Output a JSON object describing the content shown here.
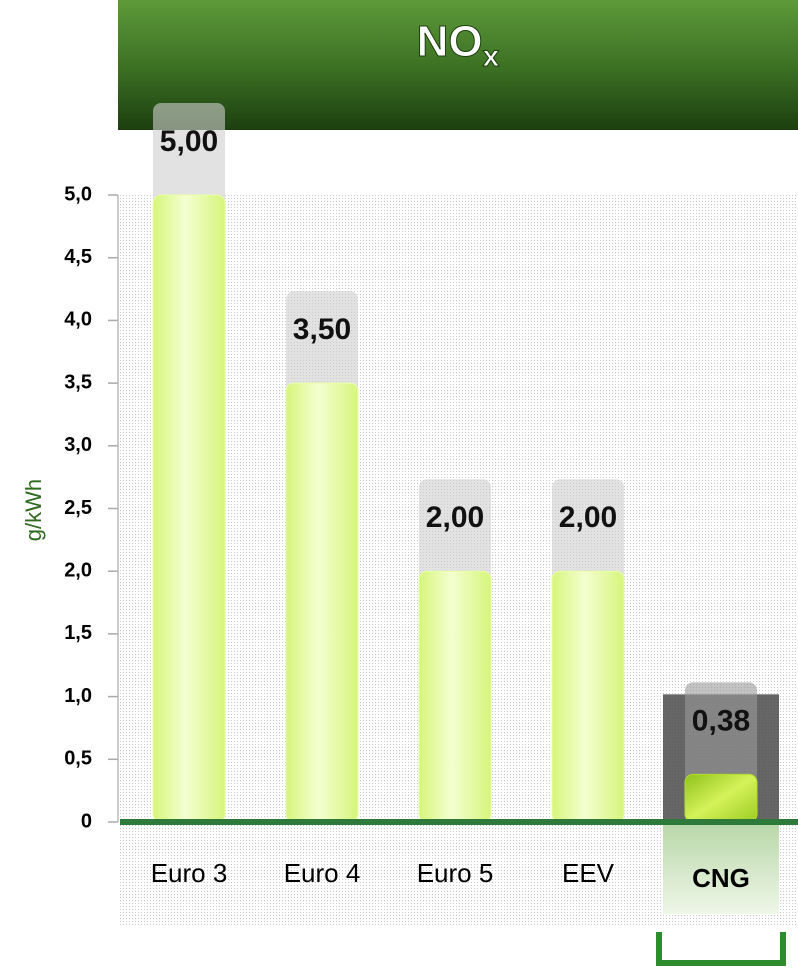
{
  "chart_data": {
    "type": "bar",
    "title": "NO",
    "title_subscript": "x",
    "y_label": "g/kWh",
    "categories": [
      "Euro 3",
      "Euro 4",
      "Euro 5",
      "EEV",
      "CNG"
    ],
    "values": [
      5.0,
      3.5,
      2.0,
      2.0,
      0.38
    ],
    "value_labels": [
      "5,00",
      "3,50",
      "2,00",
      "2,00",
      "0,38"
    ],
    "color": "#eaffa8",
    "highlight_color": "#b5de2a",
    "ylim": [
      0,
      5
    ],
    "yticks": [
      0,
      {
        "value": 0.5,
        "label": "0,5"
      },
      {
        "value": 1,
        "label": "1,0"
      },
      {
        "value": 1.5,
        "label": "1,5"
      },
      {
        "value": 2,
        "label": "2,0"
      },
      {
        "value": 2.5,
        "label": "2,5"
      },
      {
        "value": 3,
        "label": "3,0"
      },
      {
        "value": 3.5,
        "label": "3,5"
      },
      {
        "value": 4,
        "label": "4,0"
      },
      {
        "value": 4.5,
        "label": "4,5"
      },
      {
        "value": 5,
        "label": "5,0"
      }
    ]
  }
}
